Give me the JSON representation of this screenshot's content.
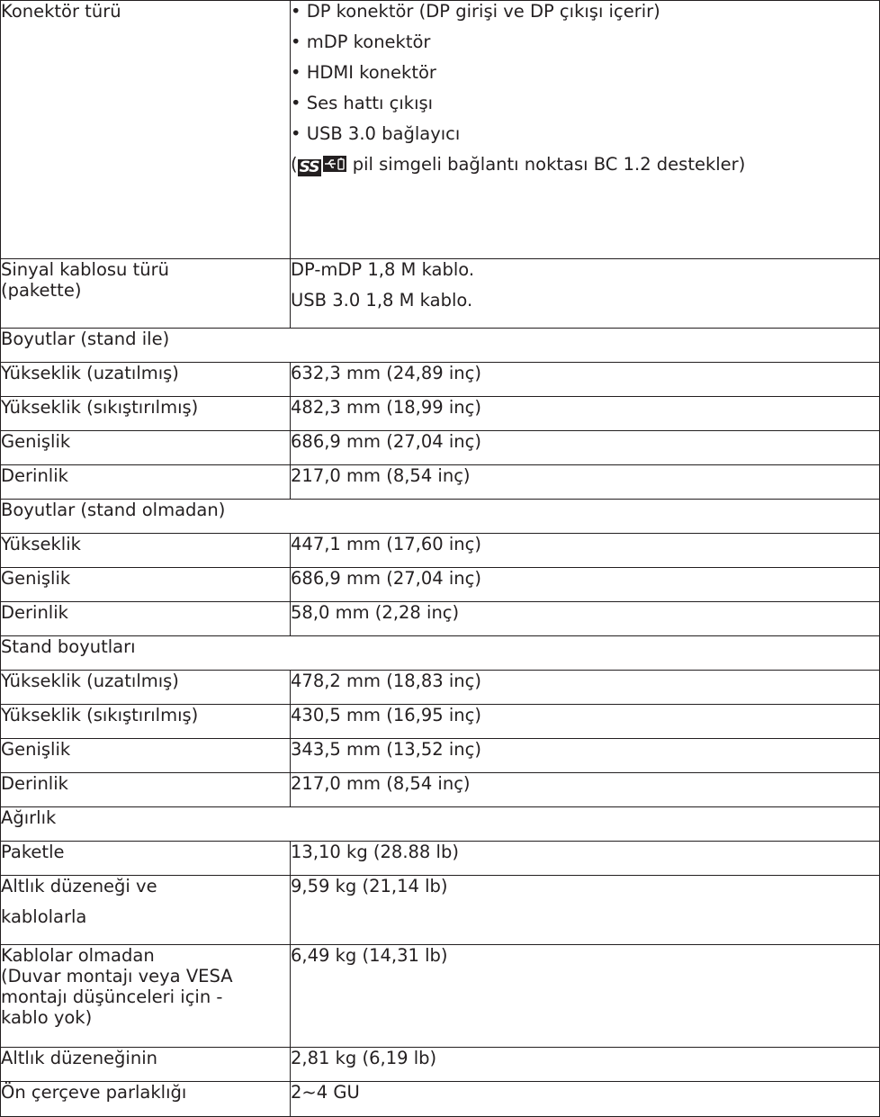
{
  "connector": {
    "label": "Konektör türü",
    "items": [
      "• DP konektör (DP girişi ve DP çıkışı içerir)",
      "• mDP konektör",
      "• HDMI konektör",
      "• Ses hattı çıkışı",
      "• USB 3.0 bağlayıcı"
    ],
    "note_open": "(",
    "note_badge": "SS",
    "note_text": " pil simgeli bağlantı noktası BC 1.2 destekler)"
  },
  "cable": {
    "label_line1": "Sinyal kablosu türü",
    "label_line2": "(pakette)",
    "values": [
      "DP-mDP 1,8 M kablo.",
      "USB 3.0 1,8 M kablo."
    ]
  },
  "dim_with_stand": {
    "title": "Boyutlar (stand ile)",
    "rows": [
      {
        "label": "Yükseklik (uzatılmış)",
        "value": "632,3 mm (24,89 inç)"
      },
      {
        "label": "Yükseklik (sıkıştırılmış)",
        "value": "482,3 mm (18,99 inç)"
      },
      {
        "label": "Genişlik",
        "value": "686,9 mm (27,04 inç)"
      },
      {
        "label": "Derinlik",
        "value": "217,0 mm (8,54 inç)"
      }
    ]
  },
  "dim_without_stand": {
    "title": "Boyutlar (stand olmadan)",
    "rows": [
      {
        "label": "Yükseklik",
        "value": "447,1 mm (17,60 inç)"
      },
      {
        "label": "Genişlik",
        "value": "686,9 mm (27,04 inç)"
      },
      {
        "label": "Derinlik",
        "value": "58,0 mm (2,28 inç)"
      }
    ]
  },
  "stand_dim": {
    "title": "Stand boyutları",
    "rows": [
      {
        "label": "Yükseklik (uzatılmış)",
        "value": "478,2 mm (18,83 inç)"
      },
      {
        "label": "Yükseklik (sıkıştırılmış)",
        "value": "430,5 mm (16,95 inç)"
      },
      {
        "label": "Genişlik",
        "value": "343,5 mm (13,52 inç)"
      },
      {
        "label": "Derinlik",
        "value": "217,0 mm (8,54 inç)"
      }
    ]
  },
  "weight": {
    "title": "Ağırlık",
    "package": {
      "label": "Paketle",
      "value": "13,10 kg (28.88 lb)"
    },
    "stand_cables": {
      "label_line1": "Altlık düzeneği ve",
      "label_line2": "kablolarla",
      "value": "9,59 kg (21,14 lb)"
    },
    "no_cables": {
      "label_lines": [
        "Kablolar olmadan",
        "(Duvar montajı veya VESA",
        "montajı düşünceleri için -",
        "kablo yok)"
      ],
      "value": "6,49 kg (14,31 lb)"
    },
    "stand_assembly": {
      "label": "Altlık düzeneğinin",
      "value": "2,81 kg (6,19 lb)"
    }
  },
  "bezel": {
    "label": "Ön çerçeve parlaklığı",
    "value": "2~4 GU"
  }
}
